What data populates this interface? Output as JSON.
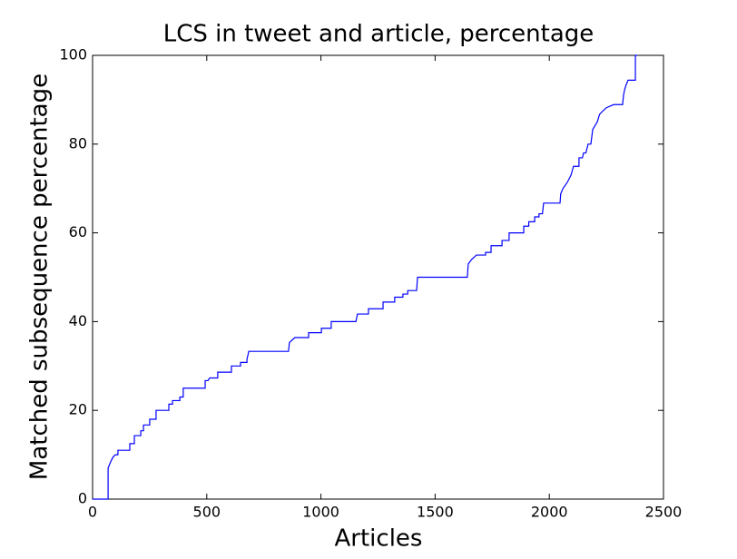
{
  "chart_data": {
    "type": "line",
    "title": "LCS in tweet and article, percentage",
    "xlabel": "Articles",
    "ylabel": "Matched subsequence percentage",
    "xlim": [
      0,
      2500
    ],
    "xticks": [
      0,
      500,
      1000,
      1500,
      2000,
      2500
    ],
    "ylim": [
      0,
      100
    ],
    "yticks": [
      0,
      20,
      40,
      60,
      80,
      100
    ],
    "series": [
      {
        "color": "#0000ff",
        "x": [
          0,
          68,
          68,
          80,
          90,
          100,
          111,
          111,
          163,
          163,
          183,
          183,
          211,
          211,
          223,
          223,
          250,
          250,
          278,
          278,
          334,
          334,
          350,
          350,
          382,
          382,
          397,
          397,
          493,
          493,
          505,
          513,
          548,
          548,
          608,
          608,
          648,
          648,
          676,
          676,
          684,
          858,
          862,
          886,
          946,
          946,
          1002,
          1002,
          1045,
          1045,
          1153,
          1160,
          1208,
          1208,
          1272,
          1272,
          1323,
          1323,
          1359,
          1359,
          1380,
          1380,
          1419,
          1423,
          1641,
          1645,
          1660,
          1681,
          1721,
          1721,
          1745,
          1745,
          1793,
          1793,
          1824,
          1824,
          1888,
          1888,
          1910,
          1910,
          1936,
          1936,
          1955,
          1955,
          1970,
          1975,
          2047,
          2050,
          2060,
          2079,
          2095,
          2106,
          2130,
          2130,
          2145,
          2150,
          2160,
          2170,
          2182,
          2190,
          2210,
          2220,
          2235,
          2250,
          2282,
          2321,
          2325,
          2330,
          2336,
          2345,
          2377,
          2377,
          2385
        ],
        "values": [
          0,
          0,
          7,
          8.5,
          9.5,
          10,
          10,
          11,
          11,
          12.5,
          12.5,
          14.3,
          14.3,
          15.4,
          15.4,
          16.7,
          16.7,
          18,
          18,
          20,
          20,
          21.4,
          21.4,
          22.2,
          22.2,
          23,
          23,
          25,
          25,
          26.7,
          26.7,
          27.3,
          27.3,
          28.6,
          28.6,
          30,
          30,
          30.8,
          30.8,
          31.5,
          33.3,
          33.3,
          35.3,
          36.4,
          36.4,
          37.5,
          37.5,
          38.5,
          38.5,
          40,
          40,
          41.7,
          41.7,
          42.9,
          42.9,
          44.4,
          44.4,
          45.5,
          45.5,
          46.2,
          46.2,
          47,
          47,
          50,
          50,
          53,
          54,
          55,
          55,
          55.6,
          55.6,
          57.1,
          57.1,
          58.3,
          58.3,
          60,
          60,
          61.5,
          61.5,
          62.5,
          62.5,
          63.6,
          63.6,
          64.3,
          64.3,
          66.7,
          66.7,
          68.8,
          70,
          71.4,
          73,
          75,
          75,
          76.9,
          76.9,
          78,
          78,
          80,
          80,
          83.3,
          85,
          86.7,
          87.5,
          88.2,
          88.9,
          88.9,
          91,
          92.3,
          93.3,
          94.4,
          94.4,
          100,
          100
        ]
      }
    ]
  }
}
